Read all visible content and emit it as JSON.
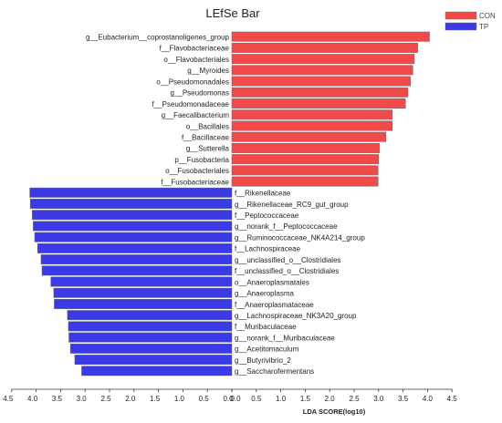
{
  "chart_data": {
    "type": "bar",
    "orientation": "horizontal-diverging",
    "title": "LEfSe Bar",
    "xlabel": "LDA SCORE(log10)",
    "ylabel": "",
    "xlim_left": [
      4.5,
      0.0
    ],
    "xlim_right": [
      0.0,
      4.5
    ],
    "x_ticks_left": [
      "4.5",
      "4.0",
      "3.5",
      "3.0",
      "2.5",
      "2.0",
      "1.5",
      "1.0",
      "0.5",
      "0.0"
    ],
    "x_ticks_right": [
      "0.0",
      "0.5",
      "1.0",
      "1.5",
      "2.0",
      "2.5",
      "3.0",
      "3.5",
      "4.0",
      "4.5"
    ],
    "grid": false,
    "legend_position": "top-right",
    "series": [
      {
        "name": "CON",
        "color": "#f24a4a",
        "direction": "right",
        "categories": [
          "g__Eubacterium__coprostanoligenes_group",
          "f__Flavobacteriaceae",
          "o__Flavobacteriales",
          "g__Myroides",
          "o__Pseudomonadales",
          "g__Pseudomonas",
          "f__Pseudomonadaceae",
          "g__Faecalibacterium",
          "o__Bacillales",
          "f__Bacillaceae",
          "g__Sutterella",
          "p__Fusobacteria",
          "o__Fusobacteriales",
          "f__Fusobacteriaceae"
        ],
        "values": [
          4.04,
          3.8,
          3.73,
          3.7,
          3.65,
          3.6,
          3.55,
          3.28,
          3.28,
          3.15,
          3.02,
          3.0,
          2.99,
          2.99
        ]
      },
      {
        "name": "TP",
        "color": "#3a3ae8",
        "direction": "left",
        "categories": [
          "f__Rikenellaceae",
          "g__Rikenellaceae_RC9_gut_group",
          "f__Peptococcaceae",
          "g__norank_f__Peptococcaceae",
          "g__Ruminococcaceae_NK4A214_group",
          "f__Lachnospiraceae",
          "g__unclassified_o__Clostridiales",
          "f__unclassified_o__Clostridiales",
          "o__Anaeroplasmatales",
          "g__Anaeroplasma",
          "f__Anaeroplasmataceae",
          "g__Lachnospiraceae_NK3A20_group",
          "f__Muribaculaceae",
          "g__norank_f__Muribaculaceae",
          "g__Acetitomaculum",
          "g__Butyrivibrio_2",
          "g__Saccharofermentans"
        ],
        "values": [
          4.13,
          4.12,
          4.08,
          4.06,
          4.03,
          3.97,
          3.9,
          3.88,
          3.7,
          3.64,
          3.63,
          3.36,
          3.34,
          3.33,
          3.3,
          3.21,
          3.07
        ]
      }
    ]
  }
}
